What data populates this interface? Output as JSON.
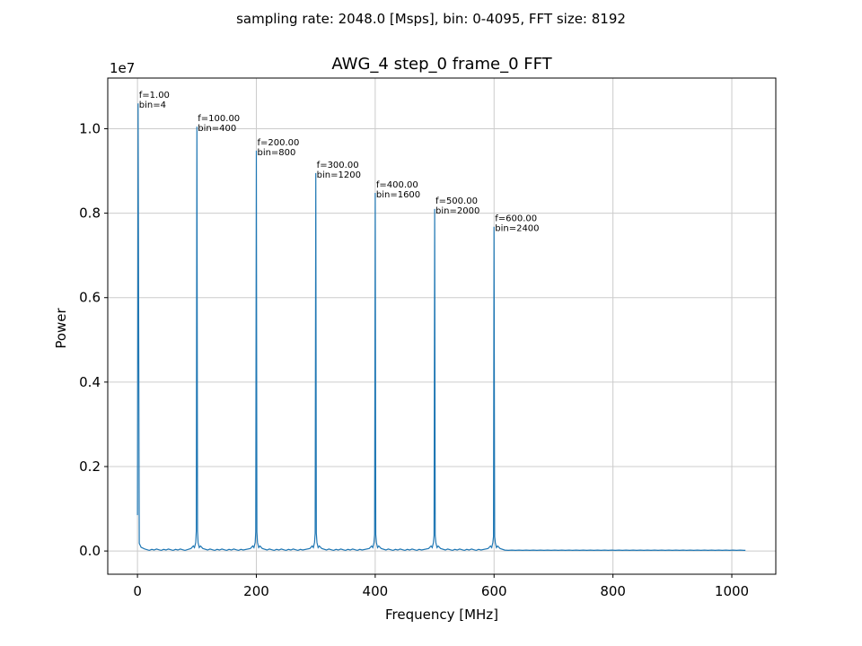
{
  "figure": {
    "suptitle": "sampling rate: 2048.0 [Msps],  bin: 0-4095,  FFT size: 8192"
  },
  "chart_data": {
    "type": "line",
    "title": "AWG_4 step_0 frame_0 FFT",
    "xlabel": "Frequency [MHz]",
    "ylabel": "Power",
    "y_offset_label": "1e7",
    "xlim": [
      -50,
      1074
    ],
    "ylim": [
      -550000,
      11200000
    ],
    "xticks": [
      0,
      200,
      400,
      600,
      800,
      1000
    ],
    "yticks": [
      0,
      2000000,
      4000000,
      6000000,
      8000000,
      10000000
    ],
    "ytick_labels": [
      "0.0",
      "0.2",
      "0.4",
      "0.6",
      "0.8",
      "1.0"
    ],
    "grid": true,
    "line_color": "#1f77b4",
    "series": [
      {
        "peaks": [
          {
            "x": 1,
            "y": 10600000,
            "label_f": "f=1.00",
            "label_bin": "bin=4"
          },
          {
            "x": 100,
            "y": 10050000,
            "label_f": "f=100.00",
            "label_bin": "bin=400"
          },
          {
            "x": 200,
            "y": 9480000,
            "label_f": "f=200.00",
            "label_bin": "bin=800"
          },
          {
            "x": 300,
            "y": 8950000,
            "label_f": "f=300.00",
            "label_bin": "bin=1200"
          },
          {
            "x": 400,
            "y": 8480000,
            "label_f": "f=400.00",
            "label_bin": "bin=1600"
          },
          {
            "x": 500,
            "y": 8100000,
            "label_f": "f=500.00",
            "label_bin": "bin=2000"
          },
          {
            "x": 600,
            "y": 7680000,
            "label_f": "f=600.00",
            "label_bin": "bin=2400"
          }
        ],
        "peak_bases": [
          {
            "x": 0,
            "y": 850000
          },
          {
            "x": 100,
            "y": 470000
          },
          {
            "x": 200,
            "y": 450000
          },
          {
            "x": 300,
            "y": 420000
          },
          {
            "x": 400,
            "y": 390000
          },
          {
            "x": 500,
            "y": 370000
          },
          {
            "x": 600,
            "y": 340000
          }
        ],
        "x_end": 1023,
        "noise_floor": 15000
      }
    ]
  }
}
